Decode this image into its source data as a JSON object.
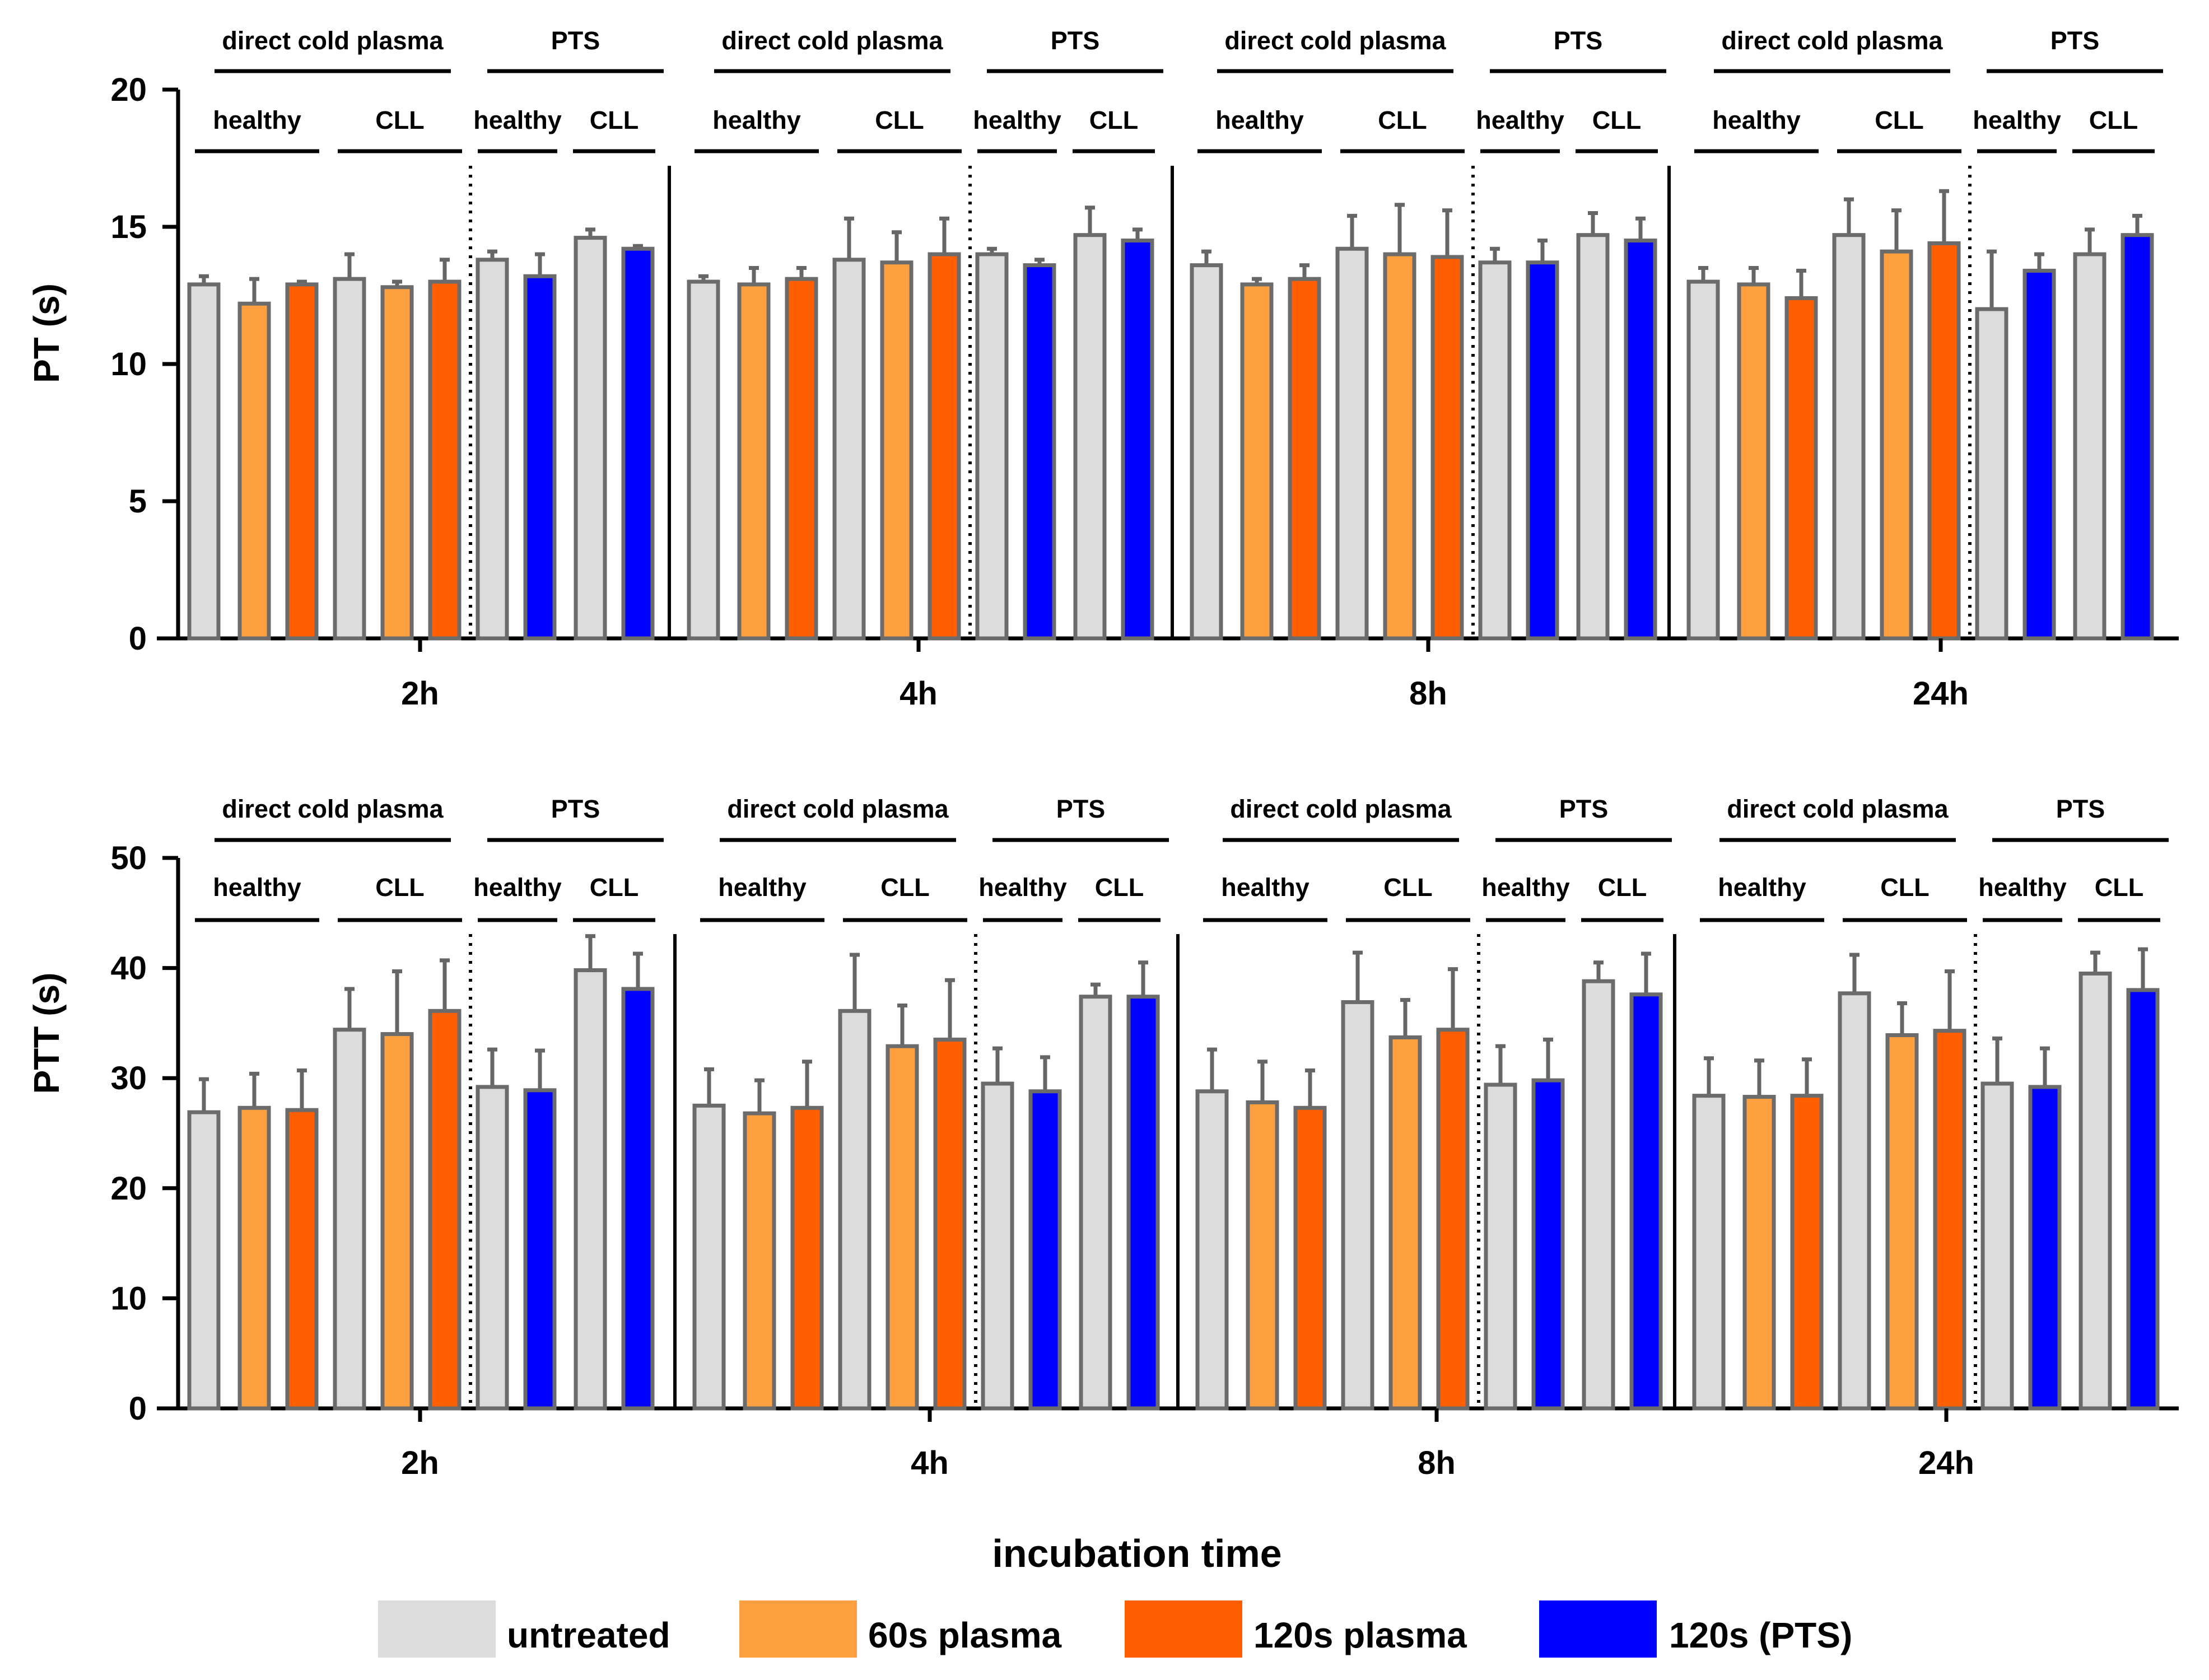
{
  "colors": {
    "untreated": "#dcdcdc",
    "plasma60": "#ffa040",
    "plasma120": "#ff5f00",
    "pts": "#0000ff",
    "bar_stroke": "#6b6b6b",
    "error_bar": "#666666",
    "axis": "#000000"
  },
  "labels": {
    "direct": "direct cold plasma",
    "pts": "PTS",
    "healthy": "healthy",
    "cll": "CLL"
  },
  "x_title": "incubation time",
  "legend": [
    {
      "key": "untreated",
      "label": "untreated"
    },
    {
      "key": "plasma60",
      "label": "60s plasma"
    },
    {
      "key": "plasma120",
      "label": "120s plasma"
    },
    {
      "key": "pts",
      "label": "120s (PTS)"
    }
  ],
  "chart_data": [
    {
      "type": "bar",
      "ylabel": "PT (s)",
      "ylim": [
        0,
        20
      ],
      "yticks": [
        0,
        5,
        10,
        15,
        20
      ],
      "categories": [
        "2h",
        "4h",
        "8h",
        "24h"
      ],
      "bar_order": [
        "direct healthy untreated",
        "direct healthy 60s plasma",
        "direct healthy 120s plasma",
        "direct CLL untreated",
        "direct CLL 60s plasma",
        "direct CLL 120s plasma",
        "PTS healthy untreated",
        "PTS healthy 120s (PTS)",
        "PTS CLL untreated",
        "PTS CLL 120s (PTS)"
      ],
      "bar_colors": [
        "untreated",
        "plasma60",
        "plasma120",
        "untreated",
        "plasma60",
        "plasma120",
        "untreated",
        "pts",
        "untreated",
        "pts"
      ],
      "groups": [
        {
          "time": "2h",
          "values": [
            12.9,
            12.2,
            12.9,
            13.1,
            12.8,
            13.0,
            13.8,
            13.2,
            14.6,
            14.2
          ],
          "errors": [
            0.3,
            0.9,
            0.1,
            0.9,
            0.2,
            0.8,
            0.3,
            0.8,
            0.3,
            0.1
          ]
        },
        {
          "time": "4h",
          "values": [
            13.0,
            12.9,
            13.1,
            13.8,
            13.7,
            14.0,
            14.0,
            13.6,
            14.7,
            14.5
          ],
          "errors": [
            0.2,
            0.6,
            0.4,
            1.5,
            1.1,
            1.3,
            0.2,
            0.2,
            1.0,
            0.4
          ]
        },
        {
          "time": "8h",
          "values": [
            13.6,
            12.9,
            13.1,
            14.2,
            14.0,
            13.9,
            13.7,
            13.7,
            14.7,
            14.5
          ],
          "errors": [
            0.5,
            0.2,
            0.5,
            1.2,
            1.8,
            1.7,
            0.5,
            0.8,
            0.8,
            0.8
          ]
        },
        {
          "time": "24h",
          "values": [
            13.0,
            12.9,
            12.4,
            14.7,
            14.1,
            14.4,
            12.0,
            13.4,
            14.0,
            14.7
          ],
          "errors": [
            0.5,
            0.6,
            1.0,
            1.3,
            1.5,
            1.9,
            2.1,
            0.6,
            0.9,
            0.7
          ]
        }
      ]
    },
    {
      "type": "bar",
      "ylabel": "PTT (s)",
      "ylim": [
        0,
        50
      ],
      "yticks": [
        0,
        10,
        20,
        30,
        40,
        50
      ],
      "categories": [
        "2h",
        "4h",
        "8h",
        "24h"
      ],
      "bar_order": [
        "direct healthy untreated",
        "direct healthy 60s plasma",
        "direct healthy 120s plasma",
        "direct CLL untreated",
        "direct CLL 60s plasma",
        "direct CLL 120s plasma",
        "PTS healthy untreated",
        "PTS healthy 120s (PTS)",
        "PTS CLL untreated",
        "PTS CLL 120s (PTS)"
      ],
      "bar_colors": [
        "untreated",
        "plasma60",
        "plasma120",
        "untreated",
        "plasma60",
        "plasma120",
        "untreated",
        "pts",
        "untreated",
        "pts"
      ],
      "groups": [
        {
          "time": "2h",
          "values": [
            26.9,
            27.3,
            27.1,
            34.4,
            34.0,
            36.1,
            29.2,
            28.9,
            39.8,
            38.1
          ],
          "errors": [
            3.0,
            3.1,
            3.6,
            3.7,
            5.7,
            4.6,
            3.4,
            3.6,
            3.1,
            3.2
          ]
        },
        {
          "time": "4h",
          "values": [
            27.5,
            26.8,
            27.3,
            36.1,
            32.9,
            33.5,
            29.5,
            28.8,
            37.4,
            37.4
          ],
          "errors": [
            3.3,
            3.0,
            4.2,
            5.1,
            3.7,
            5.4,
            3.2,
            3.1,
            1.1,
            3.1
          ]
        },
        {
          "time": "8h",
          "values": [
            28.8,
            27.8,
            27.3,
            36.9,
            33.7,
            34.4,
            29.4,
            29.8,
            38.8,
            37.6
          ],
          "errors": [
            3.8,
            3.7,
            3.4,
            4.5,
            3.4,
            5.5,
            3.5,
            3.7,
            1.7,
            3.7
          ]
        },
        {
          "time": "24h",
          "values": [
            28.4,
            28.3,
            28.4,
            37.7,
            33.9,
            34.3,
            29.5,
            29.2,
            39.5,
            38.0
          ],
          "errors": [
            3.4,
            3.3,
            3.3,
            3.5,
            2.9,
            5.4,
            4.1,
            3.5,
            1.9,
            3.7
          ]
        }
      ]
    }
  ]
}
